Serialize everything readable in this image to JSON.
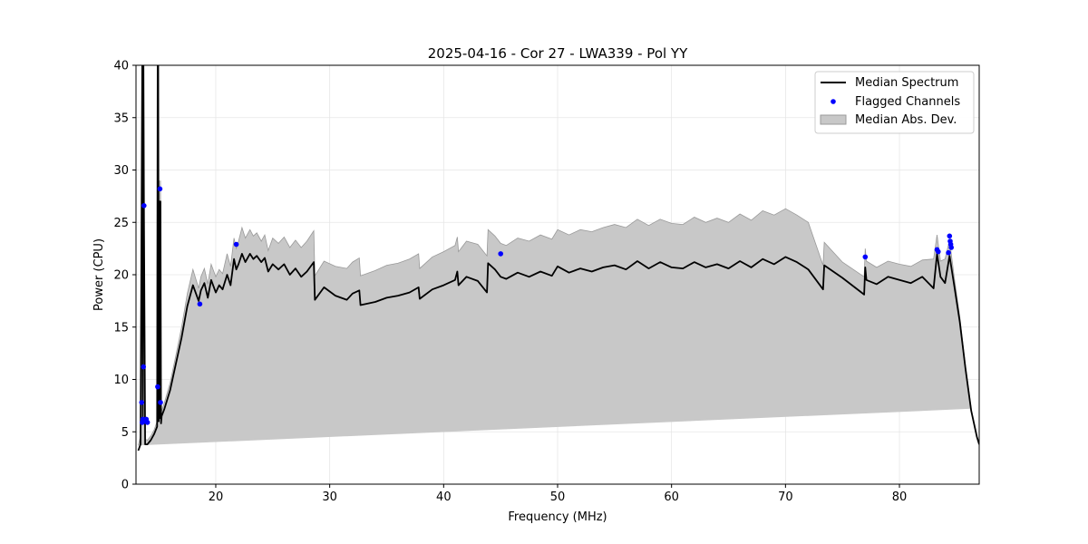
{
  "chart_data": {
    "type": "line",
    "title": "2025-04-16 - Cor 27 - LWA339 - Pol YY",
    "xlabel": "Frequency (MHz)",
    "ylabel": "Power (CPU)",
    "xlim": [
      13.0,
      87.0
    ],
    "ylim": [
      0,
      40
    ],
    "xticks": [
      20,
      30,
      40,
      50,
      60,
      70,
      80
    ],
    "yticks": [
      0,
      5,
      10,
      15,
      20,
      25,
      30,
      35,
      40
    ],
    "grid": true,
    "legend_position": "top-right",
    "series": [
      {
        "name": "Median Spectrum",
        "kind": "line",
        "color": "#000000",
        "x": [
          13.2,
          13.4,
          13.55,
          13.6,
          13.65,
          13.7,
          13.8,
          14.0,
          14.3,
          14.6,
          14.85,
          14.9,
          14.95,
          15.0,
          15.05,
          15.1,
          15.15,
          15.2,
          15.25,
          15.5,
          16.0,
          16.5,
          17.0,
          17.5,
          18.0,
          18.5,
          18.7,
          19.0,
          19.3,
          19.6,
          20.0,
          20.3,
          20.6,
          21.0,
          21.3,
          21.6,
          21.8,
          22.0,
          22.3,
          22.6,
          23.0,
          23.3,
          23.6,
          24.0,
          24.3,
          24.6,
          25.0,
          25.5,
          26.0,
          26.5,
          27.0,
          27.5,
          28.0,
          28.6,
          28.7,
          29.5,
          30.5,
          31.5,
          32.0,
          32.6,
          32.7,
          34.0,
          35.0,
          36.0,
          37.0,
          37.8,
          37.9,
          39.0,
          40.0,
          41.0,
          41.2,
          41.3,
          42.0,
          43.0,
          43.8,
          43.9,
          44.5,
          45.0,
          45.5,
          46.5,
          47.5,
          48.5,
          49.5,
          50.0,
          51.0,
          52.0,
          53.0,
          54.0,
          55.0,
          56.0,
          57.0,
          58.0,
          59.0,
          60.0,
          61.0,
          62.0,
          63.0,
          64.0,
          65.0,
          66.0,
          67.0,
          68.0,
          69.0,
          70.0,
          71.0,
          72.0,
          73.3,
          73.4,
          75.0,
          76.9,
          77.0,
          77.1,
          78.0,
          79.0,
          80.0,
          81.0,
          82.0,
          83.0,
          83.3,
          83.6,
          84.0,
          84.4,
          84.8,
          85.3,
          85.8,
          86.3,
          86.8,
          87.0
        ],
        "y": [
          3.2,
          3.8,
          40,
          6.0,
          40,
          25.4,
          3.8,
          3.8,
          4.2,
          4.8,
          5.5,
          40,
          40,
          6.0,
          27.0,
          6.3,
          27.0,
          5.8,
          6.5,
          7.2,
          9.0,
          11.5,
          14.0,
          17.0,
          19.0,
          17.5,
          18.5,
          19.2,
          17.8,
          19.5,
          18.3,
          19.0,
          18.6,
          20.0,
          19.0,
          21.5,
          20.5,
          21.0,
          22.0,
          21.2,
          22.0,
          21.5,
          21.8,
          21.2,
          21.6,
          20.3,
          21.0,
          20.5,
          21.0,
          20.0,
          20.6,
          19.8,
          20.3,
          21.2,
          17.6,
          18.8,
          18.0,
          17.6,
          18.2,
          18.5,
          17.1,
          17.4,
          17.8,
          18.0,
          18.3,
          18.8,
          17.7,
          18.6,
          19.0,
          19.5,
          20.3,
          19.0,
          19.8,
          19.4,
          18.3,
          21.1,
          20.5,
          19.8,
          19.6,
          20.2,
          19.8,
          20.3,
          19.9,
          20.8,
          20.2,
          20.6,
          20.3,
          20.7,
          20.9,
          20.5,
          21.3,
          20.6,
          21.2,
          20.7,
          20.6,
          21.2,
          20.7,
          21.0,
          20.6,
          21.3,
          20.7,
          21.5,
          21.0,
          21.7,
          21.2,
          20.5,
          18.6,
          20.9,
          19.7,
          18.1,
          20.7,
          19.5,
          19.1,
          19.8,
          19.5,
          19.2,
          19.8,
          18.7,
          22.0,
          19.8,
          19.2,
          21.8,
          19.0,
          15.5,
          11.0,
          7.0,
          4.5,
          3.8
        ],
        "mad": [
          0.5,
          0.8,
          2.0,
          1.0,
          2.0,
          2.0,
          0.5,
          0.4,
          0.4,
          0.4,
          0.5,
          2.0,
          2.0,
          0.6,
          2.0,
          0.6,
          2.0,
          0.6,
          0.5,
          0.6,
          0.7,
          0.8,
          1.0,
          1.2,
          1.5,
          1.2,
          1.3,
          1.4,
          1.3,
          1.5,
          1.5,
          1.5,
          1.5,
          2.0,
          1.8,
          2.0,
          2.0,
          2.2,
          2.5,
          2.3,
          2.3,
          2.2,
          2.2,
          2.0,
          2.2,
          2.0,
          2.5,
          2.5,
          2.6,
          2.6,
          2.7,
          2.8,
          2.9,
          3.0,
          2.3,
          2.5,
          2.8,
          3.0,
          3.0,
          3.1,
          2.8,
          3.0,
          3.1,
          3.1,
          3.2,
          3.2,
          2.9,
          3.1,
          3.2,
          3.3,
          3.3,
          3.2,
          3.4,
          3.5,
          3.5,
          3.2,
          3.2,
          3.2,
          3.2,
          3.3,
          3.4,
          3.5,
          3.5,
          3.5,
          3.6,
          3.7,
          3.8,
          3.8,
          3.9,
          4.0,
          4.0,
          4.1,
          4.1,
          4.2,
          4.2,
          4.3,
          4.3,
          4.4,
          4.4,
          4.5,
          4.5,
          4.6,
          4.7,
          4.6,
          4.5,
          4.5,
          2.3,
          2.2,
          1.5,
          1.7,
          1.8,
          1.8,
          1.6,
          1.5,
          1.5,
          1.6,
          1.6,
          2.8,
          1.8,
          1.5,
          2.3,
          1.5,
          0.8,
          0.5,
          0.3,
          0.2
        ]
      },
      {
        "name": "Flagged Channels",
        "kind": "scatter",
        "color": "#0000ff",
        "x": [
          13.5,
          13.55,
          13.6,
          13.65,
          13.7,
          13.8,
          13.9,
          14.0,
          14.9,
          15.1,
          15.15,
          18.6,
          21.8,
          45.0,
          77.0,
          83.3,
          83.4,
          84.3,
          84.4,
          84.45,
          84.5,
          84.55
        ],
        "y": [
          7.8,
          5.9,
          6.2,
          11.2,
          26.6,
          6.0,
          6.2,
          5.9,
          9.3,
          28.2,
          7.8,
          17.2,
          22.9,
          22.0,
          21.7,
          22.4,
          22.2,
          22.1,
          23.7,
          23.2,
          22.9,
          22.6
        ]
      },
      {
        "name": "Median Abs. Dev.",
        "kind": "band",
        "color": "#c8c8c8",
        "edge_color": "#999999"
      }
    ]
  }
}
